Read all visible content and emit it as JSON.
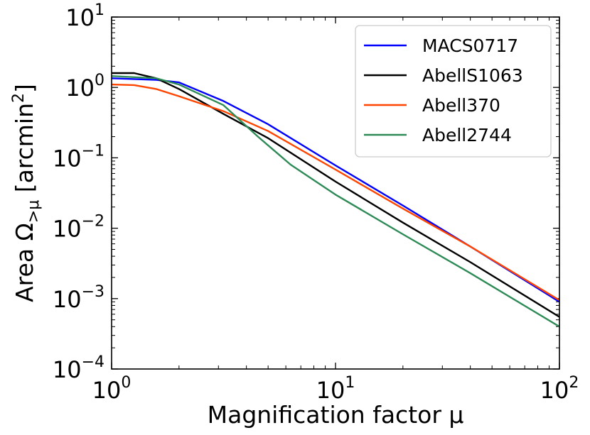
{
  "chart_data": {
    "type": "line",
    "xscale": "log",
    "yscale": "log",
    "xlim": [
      1,
      100
    ],
    "ylim": [
      0.0001,
      10
    ],
    "xlabel": "Magnification factor μ",
    "ylabel": {
      "main": "Area Ω",
      "subscript": ">μ",
      "unit": " [arcmin",
      "unit_sup": "2",
      "unit_end": "]"
    },
    "x_ticks": [
      {
        "value": 1,
        "base": "10",
        "exp": "0"
      },
      {
        "value": 10,
        "base": "10",
        "exp": "1"
      },
      {
        "value": 100,
        "base": "10",
        "exp": "2"
      }
    ],
    "y_ticks": [
      {
        "value": 0.0001,
        "base": "10",
        "exp": "−4"
      },
      {
        "value": 0.001,
        "base": "10",
        "exp": "−3"
      },
      {
        "value": 0.01,
        "base": "10",
        "exp": "−2"
      },
      {
        "value": 0.1,
        "base": "10",
        "exp": "−1"
      },
      {
        "value": 1,
        "base": "10",
        "exp": "0"
      },
      {
        "value": 10,
        "base": "10",
        "exp": "1"
      }
    ],
    "legend_position": "top-right",
    "series": [
      {
        "name": "MACS0717",
        "color": "#0000ff",
        "x": [
          1.0,
          1.58,
          2.0,
          3.16,
          5.0,
          10.0,
          20.0,
          40.0,
          100.0
        ],
        "y": [
          1.35,
          1.28,
          1.18,
          0.64,
          0.3,
          0.078,
          0.021,
          0.0055,
          0.0009
        ]
      },
      {
        "name": "AbellS1063",
        "color": "#000000",
        "x": [
          1.0,
          1.26,
          1.58,
          2.0,
          3.16,
          5.0,
          10.0,
          20.0,
          40.0,
          100.0
        ],
        "y": [
          1.6,
          1.6,
          1.35,
          0.95,
          0.42,
          0.19,
          0.046,
          0.012,
          0.0033,
          0.00055
        ]
      },
      {
        "name": "Abell370",
        "color": "#ff4500",
        "x": [
          1.0,
          1.26,
          1.58,
          2.0,
          3.16,
          5.0,
          10.0,
          20.0,
          40.0,
          100.0
        ],
        "y": [
          1.1,
          1.08,
          0.95,
          0.75,
          0.46,
          0.24,
          0.068,
          0.019,
          0.0055,
          0.00095
        ]
      },
      {
        "name": "Abell2744",
        "color": "#2e8b57",
        "x": [
          1.0,
          1.58,
          2.0,
          3.16,
          4.5,
          6.3,
          10.0,
          20.0,
          40.0,
          100.0
        ],
        "y": [
          1.45,
          1.35,
          1.1,
          0.56,
          0.2,
          0.08,
          0.03,
          0.0082,
          0.0023,
          0.0004
        ]
      }
    ]
  }
}
